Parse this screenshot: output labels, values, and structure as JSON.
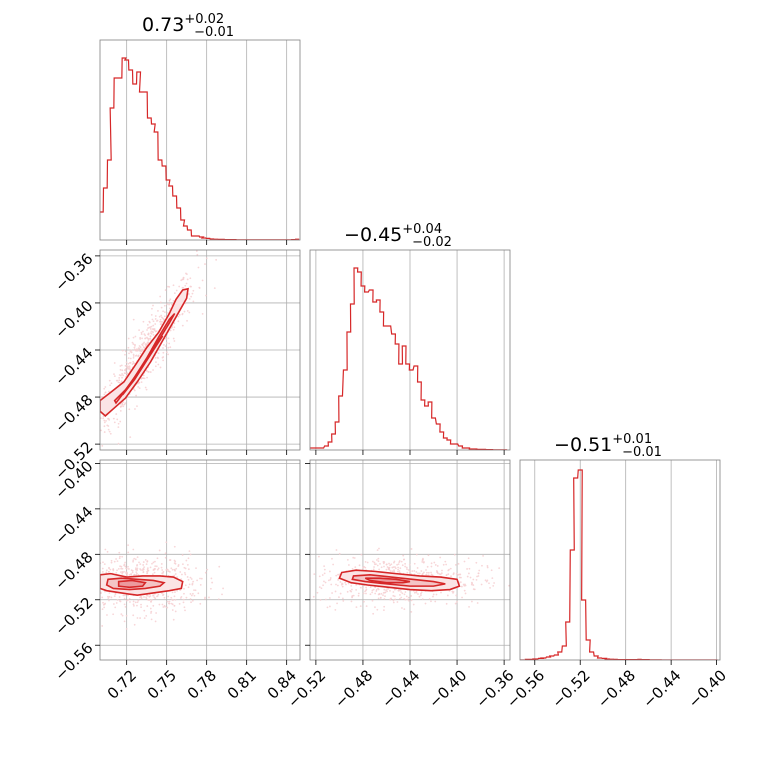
{
  "chart_data": {
    "type": "corner",
    "color": "#d62728",
    "fill_color": "#f4c4c6",
    "scatter_color": "#f6cfd1",
    "titles": [
      {
        "value": "0.73",
        "plus": "+0.02",
        "minus": "−0.01"
      },
      {
        "value": "−0.45",
        "plus": "+0.04",
        "minus": "−0.02"
      },
      {
        "value": "−0.51",
        "plus": "+0.01",
        "minus": "−0.01"
      }
    ],
    "ranges": [
      [
        0.7,
        0.85
      ],
      [
        -0.525,
        -0.355
      ],
      [
        -0.573,
        -0.397
      ]
    ],
    "ticks": [
      {
        "values": [
          0.72,
          0.75,
          0.78,
          0.81,
          0.84
        ],
        "labels": [
          "0.72",
          "0.75",
          "0.78",
          "0.81",
          "0.84"
        ]
      },
      {
        "values": [
          -0.52,
          -0.48,
          -0.44,
          -0.4,
          -0.36
        ],
        "labels": [
          "−0.52",
          "−0.48",
          "−0.44",
          "−0.40",
          "−0.36"
        ]
      },
      {
        "values": [
          -0.56,
          -0.52,
          -0.48,
          -0.44,
          -0.4
        ],
        "labels": [
          "−0.56",
          "−0.52",
          "−0.48",
          "−0.44",
          "−0.40"
        ]
      }
    ],
    "hist": [
      {
        "x": [
          0.701,
          0.704,
          0.707,
          0.709,
          0.712,
          0.715,
          0.718,
          0.72,
          0.723,
          0.726,
          0.729,
          0.731,
          0.734,
          0.737,
          0.74,
          0.742,
          0.745,
          0.748,
          0.751,
          0.753,
          0.756,
          0.759,
          0.762,
          0.764,
          0.767,
          0.77,
          0.773,
          0.776,
          0.778,
          0.781,
          0.784,
          0.787,
          0.79,
          0.792,
          0.795,
          0.798,
          0.801,
          0.803,
          0.806,
          0.809,
          0.812,
          0.814,
          0.817,
          0.82,
          0.823,
          0.825,
          0.828,
          0.831,
          0.834,
          0.836,
          0.839,
          0.842,
          0.845,
          0.848
        ],
        "y": [
          0.14,
          0.26,
          0.4,
          0.66,
          0.81,
          0.81,
          0.91,
          0.9,
          0.85,
          0.78,
          0.84,
          0.74,
          0.74,
          0.61,
          0.58,
          0.54,
          0.4,
          0.37,
          0.3,
          0.27,
          0.22,
          0.16,
          0.1,
          0.07,
          0.05,
          0.02,
          0.02,
          0.015,
          0.01,
          0.008,
          0.005,
          0.004,
          0.003,
          0.003,
          0.002,
          0.002,
          0.002,
          0.001,
          0.001,
          0.001,
          0.001,
          0.001,
          0.001,
          0.001,
          0.001,
          0.001,
          0.001,
          0.001,
          0.001,
          0.001,
          0.001,
          0.001,
          0.002,
          0.004
        ]
      },
      {
        "x": [
          -0.524,
          -0.521,
          -0.518,
          -0.515,
          -0.511,
          -0.508,
          -0.505,
          -0.502,
          -0.499,
          -0.495,
          -0.492,
          -0.489,
          -0.486,
          -0.483,
          -0.48,
          -0.477,
          -0.473,
          -0.47,
          -0.467,
          -0.464,
          -0.461,
          -0.458,
          -0.454,
          -0.451,
          -0.448,
          -0.445,
          -0.442,
          -0.439,
          -0.435,
          -0.432,
          -0.429,
          -0.426,
          -0.423,
          -0.42,
          -0.416,
          -0.413,
          -0.41,
          -0.407,
          -0.404,
          -0.401,
          -0.397,
          -0.394,
          -0.391,
          -0.388,
          -0.385,
          -0.382,
          -0.378,
          -0.375,
          -0.372,
          -0.369,
          -0.366,
          -0.363,
          -0.359
        ],
        "y": [
          0.01,
          0.01,
          0.01,
          0.01,
          0.02,
          0.04,
          0.08,
          0.14,
          0.27,
          0.4,
          0.59,
          0.73,
          0.91,
          0.89,
          0.82,
          0.79,
          0.8,
          0.74,
          0.75,
          0.69,
          0.62,
          0.62,
          0.58,
          0.53,
          0.43,
          0.52,
          0.43,
          0.4,
          0.42,
          0.34,
          0.25,
          0.22,
          0.24,
          0.16,
          0.13,
          0.09,
          0.06,
          0.05,
          0.03,
          0.03,
          0.02,
          0.01,
          0.01,
          0.005,
          0.005,
          0.003,
          0.003,
          0.002,
          0.002,
          0.001,
          0.001,
          0.001,
          0.001
        ]
      },
      {
        "x": [
          -0.573,
          -0.569,
          -0.566,
          -0.562,
          -0.559,
          -0.555,
          -0.552,
          -0.548,
          -0.545,
          -0.541,
          -0.538,
          -0.534,
          -0.531,
          -0.527,
          -0.524,
          -0.52,
          -0.517,
          -0.513,
          -0.51,
          -0.506,
          -0.503,
          -0.499,
          -0.496,
          -0.492,
          -0.489,
          -0.485,
          -0.482,
          -0.478,
          -0.475,
          -0.471,
          -0.468,
          -0.464,
          -0.461,
          -0.457,
          -0.454,
          -0.45,
          -0.447,
          -0.443,
          -0.44,
          -0.436,
          -0.433,
          -0.429,
          -0.426,
          -0.422,
          -0.419,
          -0.415,
          -0.412,
          -0.408,
          -0.405,
          -0.401
        ],
        "y": [
          0.0,
          0.0,
          0.003,
          0.003,
          0.005,
          0.008,
          0.01,
          0.015,
          0.02,
          0.025,
          0.04,
          0.07,
          0.19,
          0.55,
          0.91,
          0.95,
          0.3,
          0.1,
          0.04,
          0.02,
          0.01,
          0.008,
          0.005,
          0.004,
          0.003,
          0.002,
          0.002,
          0.002,
          0.002,
          0.002,
          0.003,
          0.002,
          0.002,
          0.001,
          0.001,
          0.001,
          0.0,
          0.0,
          0.0,
          0.0,
          0.0,
          0.0,
          0.0,
          0.0,
          0.0,
          0.0,
          0.0,
          0.0,
          0.0,
          0.0
        ]
      }
    ],
    "pairs": [
      {
        "row": 1,
        "col": 0,
        "cloud": [
          [
            0.702,
            -0.505
          ],
          [
            0.702,
            -0.47
          ],
          [
            0.715,
            -0.47
          ],
          [
            0.735,
            -0.432
          ],
          [
            0.748,
            -0.418
          ],
          [
            0.756,
            -0.398
          ],
          [
            0.763,
            -0.37
          ],
          [
            0.772,
            -0.385
          ],
          [
            0.768,
            -0.42
          ],
          [
            0.758,
            -0.44
          ],
          [
            0.742,
            -0.47
          ],
          [
            0.728,
            -0.5
          ],
          [
            0.712,
            -0.52
          ]
        ],
        "outer": [
          [
            0.7,
            -0.492
          ],
          [
            0.7,
            -0.483
          ],
          [
            0.708,
            -0.476
          ],
          [
            0.718,
            -0.467
          ],
          [
            0.727,
            -0.452
          ],
          [
            0.735,
            -0.438
          ],
          [
            0.744,
            -0.425
          ],
          [
            0.752,
            -0.409
          ],
          [
            0.757,
            -0.397
          ],
          [
            0.762,
            -0.389
          ],
          [
            0.766,
            -0.388
          ],
          [
            0.765,
            -0.396
          ],
          [
            0.758,
            -0.41
          ],
          [
            0.749,
            -0.428
          ],
          [
            0.738,
            -0.45
          ],
          [
            0.728,
            -0.467
          ],
          [
            0.719,
            -0.481
          ],
          [
            0.71,
            -0.49
          ],
          [
            0.704,
            -0.496
          ]
        ],
        "mid": [
          [
            0.711,
            -0.483
          ],
          [
            0.719,
            -0.474
          ],
          [
            0.728,
            -0.46
          ],
          [
            0.737,
            -0.444
          ],
          [
            0.745,
            -0.43
          ],
          [
            0.752,
            -0.417
          ],
          [
            0.756,
            -0.409
          ],
          [
            0.752,
            -0.414
          ],
          [
            0.744,
            -0.429
          ],
          [
            0.735,
            -0.447
          ],
          [
            0.726,
            -0.463
          ],
          [
            0.718,
            -0.476
          ],
          [
            0.712,
            -0.485
          ]
        ],
        "inner": [
          [
            0.717,
            -0.478
          ],
          [
            0.726,
            -0.465
          ],
          [
            0.735,
            -0.449
          ],
          [
            0.743,
            -0.435
          ],
          [
            0.747,
            -0.428
          ],
          [
            0.741,
            -0.437
          ],
          [
            0.732,
            -0.453
          ],
          [
            0.723,
            -0.468
          ],
          [
            0.718,
            -0.476
          ]
        ]
      },
      {
        "row": 2,
        "col": 0,
        "cloud": [
          [
            0.7,
            -0.48
          ],
          [
            0.72,
            -0.476
          ],
          [
            0.745,
            -0.478
          ],
          [
            0.77,
            -0.482
          ],
          [
            0.782,
            -0.494
          ],
          [
            0.772,
            -0.51
          ],
          [
            0.755,
            -0.528
          ],
          [
            0.73,
            -0.532
          ],
          [
            0.705,
            -0.53
          ],
          [
            0.7,
            -0.51
          ]
        ],
        "outer": [
          [
            0.7,
            -0.498
          ],
          [
            0.708,
            -0.497
          ],
          [
            0.72,
            -0.5
          ],
          [
            0.732,
            -0.499
          ],
          [
            0.745,
            -0.499
          ],
          [
            0.755,
            -0.5
          ],
          [
            0.762,
            -0.504
          ],
          [
            0.761,
            -0.51
          ],
          [
            0.752,
            -0.512
          ],
          [
            0.74,
            -0.514
          ],
          [
            0.728,
            -0.516
          ],
          [
            0.716,
            -0.514
          ],
          [
            0.705,
            -0.512
          ],
          [
            0.7,
            -0.51
          ]
        ],
        "mid": [
          [
            0.706,
            -0.502
          ],
          [
            0.716,
            -0.501
          ],
          [
            0.728,
            -0.502
          ],
          [
            0.74,
            -0.503
          ],
          [
            0.748,
            -0.505
          ],
          [
            0.745,
            -0.508
          ],
          [
            0.734,
            -0.51
          ],
          [
            0.722,
            -0.511
          ],
          [
            0.71,
            -0.51
          ],
          [
            0.705,
            -0.507
          ]
        ],
        "inner": [
          [
            0.714,
            -0.504
          ],
          [
            0.724,
            -0.503
          ],
          [
            0.734,
            -0.505
          ],
          [
            0.732,
            -0.508
          ],
          [
            0.722,
            -0.509
          ],
          [
            0.714,
            -0.508
          ]
        ]
      },
      {
        "row": 2,
        "col": 1,
        "cloud": [
          [
            -0.51,
            -0.484
          ],
          [
            -0.49,
            -0.48
          ],
          [
            -0.46,
            -0.484
          ],
          [
            -0.42,
            -0.49
          ],
          [
            -0.39,
            -0.5
          ],
          [
            -0.385,
            -0.515
          ],
          [
            -0.41,
            -0.528
          ],
          [
            -0.45,
            -0.524
          ],
          [
            -0.49,
            -0.515
          ],
          [
            -0.515,
            -0.5
          ]
        ],
        "outer": [
          [
            -0.498,
            -0.496
          ],
          [
            -0.486,
            -0.494
          ],
          [
            -0.47,
            -0.495
          ],
          [
            -0.452,
            -0.497
          ],
          [
            -0.432,
            -0.499
          ],
          [
            -0.414,
            -0.5
          ],
          [
            -0.4,
            -0.502
          ],
          [
            -0.398,
            -0.508
          ],
          [
            -0.406,
            -0.511
          ],
          [
            -0.422,
            -0.512
          ],
          [
            -0.44,
            -0.511
          ],
          [
            -0.458,
            -0.509
          ],
          [
            -0.476,
            -0.507
          ],
          [
            -0.49,
            -0.505
          ],
          [
            -0.5,
            -0.501
          ]
        ],
        "mid": [
          [
            -0.488,
            -0.499
          ],
          [
            -0.474,
            -0.498
          ],
          [
            -0.456,
            -0.5
          ],
          [
            -0.438,
            -0.502
          ],
          [
            -0.42,
            -0.504
          ],
          [
            -0.41,
            -0.506
          ],
          [
            -0.42,
            -0.508
          ],
          [
            -0.44,
            -0.508
          ],
          [
            -0.46,
            -0.506
          ],
          [
            -0.478,
            -0.504
          ],
          [
            -0.489,
            -0.502
          ]
        ],
        "inner": [
          [
            -0.478,
            -0.501
          ],
          [
            -0.466,
            -0.501
          ],
          [
            -0.452,
            -0.502
          ],
          [
            -0.44,
            -0.504
          ],
          [
            -0.446,
            -0.505
          ],
          [
            -0.46,
            -0.505
          ],
          [
            -0.474,
            -0.503
          ]
        ]
      }
    ]
  }
}
